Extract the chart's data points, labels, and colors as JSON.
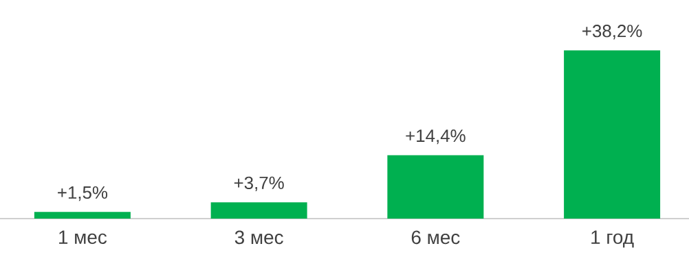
{
  "chart_data": {
    "type": "bar",
    "categories": [
      "1 мес",
      "3 мес",
      "6 мес",
      "1 год"
    ],
    "values": [
      1.5,
      3.7,
      14.4,
      38.2
    ],
    "value_labels": [
      "+1,5%",
      "+3,7%",
      "+14,4%",
      "+38,2%"
    ],
    "color": "#00b050"
  }
}
